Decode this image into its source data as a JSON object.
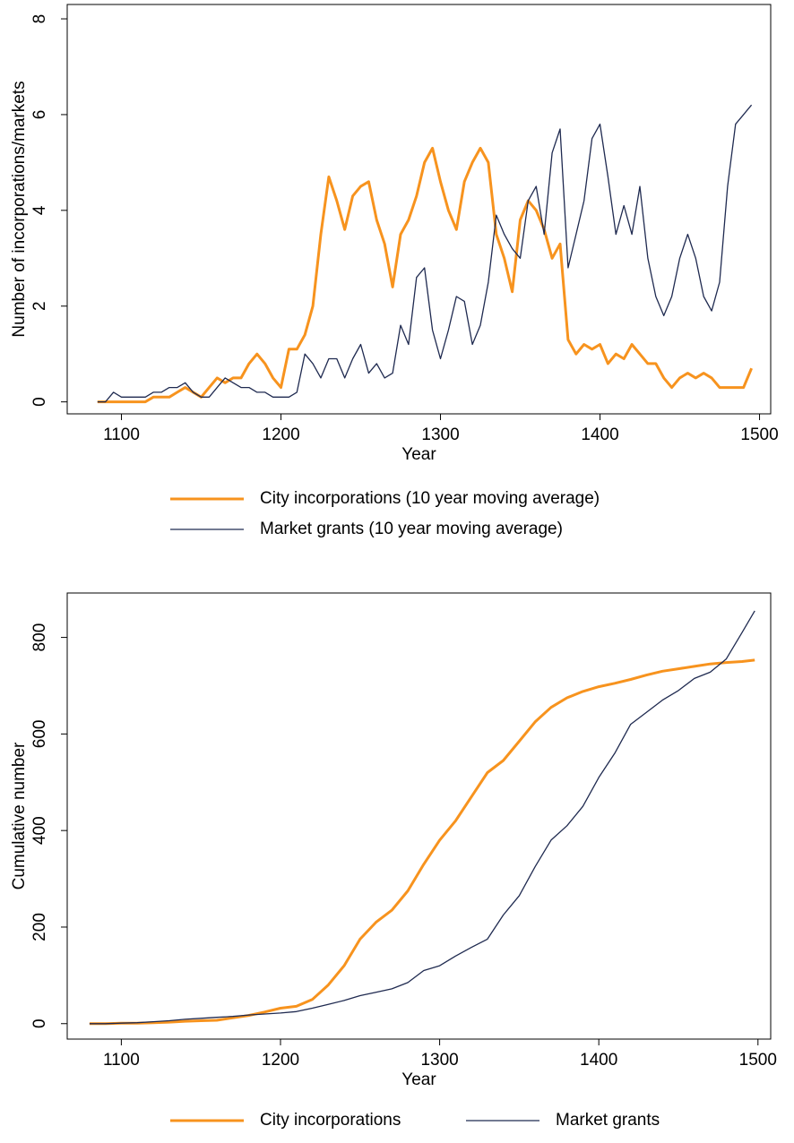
{
  "chart_data": [
    {
      "type": "line",
      "x_label": "Year",
      "y_label": "Number of incorporations/markets",
      "xlim": [
        1066,
        1507
      ],
      "xticks": [
        1100,
        1200,
        1300,
        1400,
        1500
      ],
      "ylim": [
        -0.25,
        8.3
      ],
      "yticks": [
        0,
        2,
        4,
        6,
        8
      ],
      "x": [
        1085,
        1090,
        1095,
        1100,
        1105,
        1110,
        1115,
        1120,
        1125,
        1130,
        1135,
        1140,
        1145,
        1150,
        1155,
        1160,
        1165,
        1170,
        1175,
        1180,
        1185,
        1190,
        1195,
        1200,
        1205,
        1210,
        1215,
        1220,
        1225,
        1230,
        1235,
        1240,
        1245,
        1250,
        1255,
        1260,
        1265,
        1270,
        1275,
        1280,
        1285,
        1290,
        1295,
        1300,
        1305,
        1310,
        1315,
        1320,
        1325,
        1330,
        1335,
        1340,
        1345,
        1350,
        1355,
        1360,
        1365,
        1370,
        1375,
        1380,
        1385,
        1390,
        1395,
        1400,
        1405,
        1410,
        1415,
        1420,
        1425,
        1430,
        1435,
        1440,
        1445,
        1450,
        1455,
        1460,
        1465,
        1470,
        1475,
        1480,
        1485,
        1490,
        1495
      ],
      "series": [
        {
          "name": "City incorporations (10 year moving average)",
          "color": "#f7931e",
          "width": 3,
          "values": [
            0,
            0,
            0,
            0,
            0,
            0,
            0,
            0.1,
            0.1,
            0.1,
            0.2,
            0.3,
            0.2,
            0.1,
            0.3,
            0.5,
            0.4,
            0.5,
            0.5,
            0.8,
            1.0,
            0.8,
            0.5,
            0.3,
            1.1,
            1.1,
            1.4,
            2.0,
            3.5,
            4.7,
            4.2,
            3.6,
            4.3,
            4.5,
            4.6,
            3.8,
            3.3,
            2.4,
            3.5,
            3.8,
            4.3,
            5.0,
            5.3,
            4.6,
            4.0,
            3.6,
            4.6,
            5.0,
            5.3,
            5.0,
            3.5,
            3.0,
            2.3,
            3.8,
            4.2,
            4.0,
            3.6,
            3.0,
            3.3,
            1.3,
            1.0,
            1.2,
            1.1,
            1.2,
            0.8,
            1.0,
            0.9,
            1.2,
            1.0,
            0.8,
            0.8,
            0.5,
            0.3,
            0.5,
            0.6,
            0.5,
            0.6,
            0.5,
            0.3,
            0.3,
            0.3,
            0.3,
            0.7
          ]
        },
        {
          "name": "Market grants (10 year moving average)",
          "color": "#1f2a50",
          "width": 1.3,
          "values": [
            0,
            0,
            0.2,
            0.1,
            0.1,
            0.1,
            0.1,
            0.2,
            0.2,
            0.3,
            0.3,
            0.4,
            0.2,
            0.1,
            0.1,
            0.3,
            0.5,
            0.4,
            0.3,
            0.3,
            0.2,
            0.2,
            0.1,
            0.1,
            0.1,
            0.2,
            1.0,
            0.8,
            0.5,
            0.9,
            0.9,
            0.5,
            0.9,
            1.2,
            0.6,
            0.8,
            0.5,
            0.6,
            1.6,
            1.2,
            2.6,
            2.8,
            1.5,
            0.9,
            1.5,
            2.2,
            2.1,
            1.2,
            1.6,
            2.5,
            3.9,
            3.5,
            3.2,
            3.0,
            4.2,
            4.5,
            3.5,
            5.2,
            5.7,
            2.8,
            3.5,
            4.2,
            5.5,
            5.8,
            4.7,
            3.5,
            4.1,
            3.5,
            4.5,
            3.0,
            2.2,
            1.8,
            2.2,
            3.0,
            3.5,
            3.0,
            2.2,
            1.9,
            2.5,
            4.5,
            5.8,
            6.0,
            6.2
          ]
        }
      ]
    },
    {
      "type": "line",
      "x_label": "Year",
      "y_label": "Cumulative number",
      "xlim": [
        1066,
        1508
      ],
      "xticks": [
        1100,
        1200,
        1300,
        1400,
        1500
      ],
      "ylim": [
        -32,
        892
      ],
      "yticks": [
        0,
        200,
        400,
        600,
        800
      ],
      "x": [
        1080,
        1090,
        1100,
        1110,
        1120,
        1130,
        1140,
        1150,
        1160,
        1170,
        1180,
        1190,
        1200,
        1210,
        1220,
        1230,
        1240,
        1250,
        1260,
        1270,
        1280,
        1290,
        1300,
        1310,
        1320,
        1330,
        1340,
        1350,
        1360,
        1370,
        1380,
        1390,
        1400,
        1410,
        1420,
        1430,
        1440,
        1450,
        1460,
        1470,
        1480,
        1490,
        1498
      ],
      "series": [
        {
          "name": "City incorporations",
          "color": "#f7931e",
          "width": 3,
          "values": [
            0,
            0,
            1,
            1,
            2,
            3,
            5,
            6,
            7,
            12,
            17,
            24,
            32,
            36,
            50,
            80,
            120,
            175,
            210,
            235,
            275,
            330,
            380,
            420,
            470,
            520,
            545,
            585,
            625,
            655,
            675,
            688,
            698,
            705,
            713,
            722,
            730,
            735,
            740,
            745,
            748,
            750,
            753
          ]
        },
        {
          "name": "Market grants",
          "color": "#1f2a50",
          "width": 1.3,
          "values": [
            0,
            0,
            1,
            2,
            4,
            6,
            9,
            11,
            13,
            15,
            18,
            20,
            22,
            25,
            32,
            40,
            48,
            58,
            65,
            72,
            85,
            110,
            120,
            140,
            158,
            175,
            225,
            265,
            325,
            380,
            410,
            450,
            510,
            560,
            620,
            645,
            670,
            690,
            715,
            728,
            755,
            810,
            855
          ]
        }
      ]
    }
  ]
}
